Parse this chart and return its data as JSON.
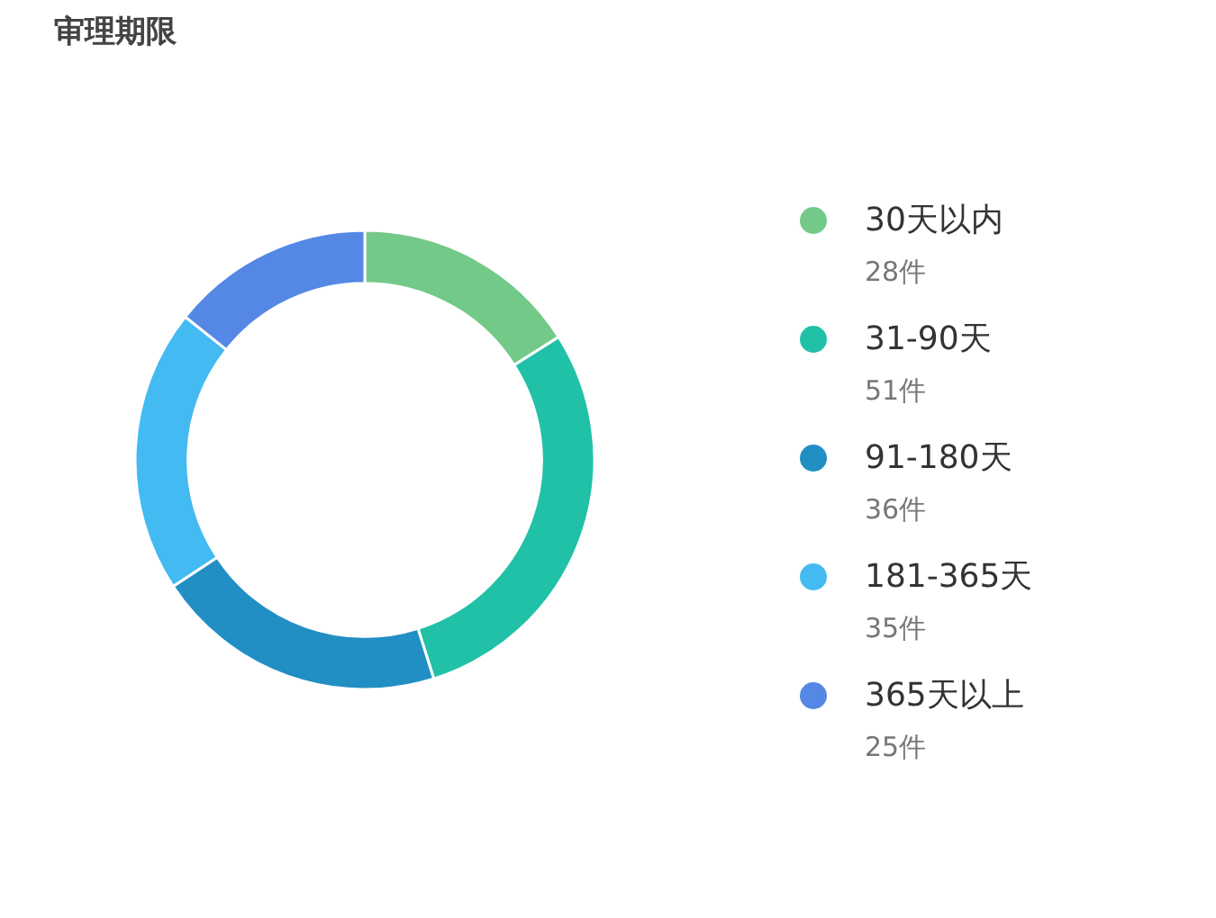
{
  "chart_data": {
    "type": "donut",
    "title": "审理期限",
    "categories": [
      "30天以内",
      "31-90天",
      "91-180天",
      "181-365天",
      "365天以上"
    ],
    "values": [
      28,
      51,
      36,
      35,
      25
    ],
    "value_labels": [
      "28件",
      "51件",
      "36件",
      "35件",
      "25件"
    ],
    "colors": [
      "#73c987",
      "#20c1a7",
      "#218fc4",
      "#44baf2",
      "#5488e4"
    ],
    "legend": "right"
  }
}
